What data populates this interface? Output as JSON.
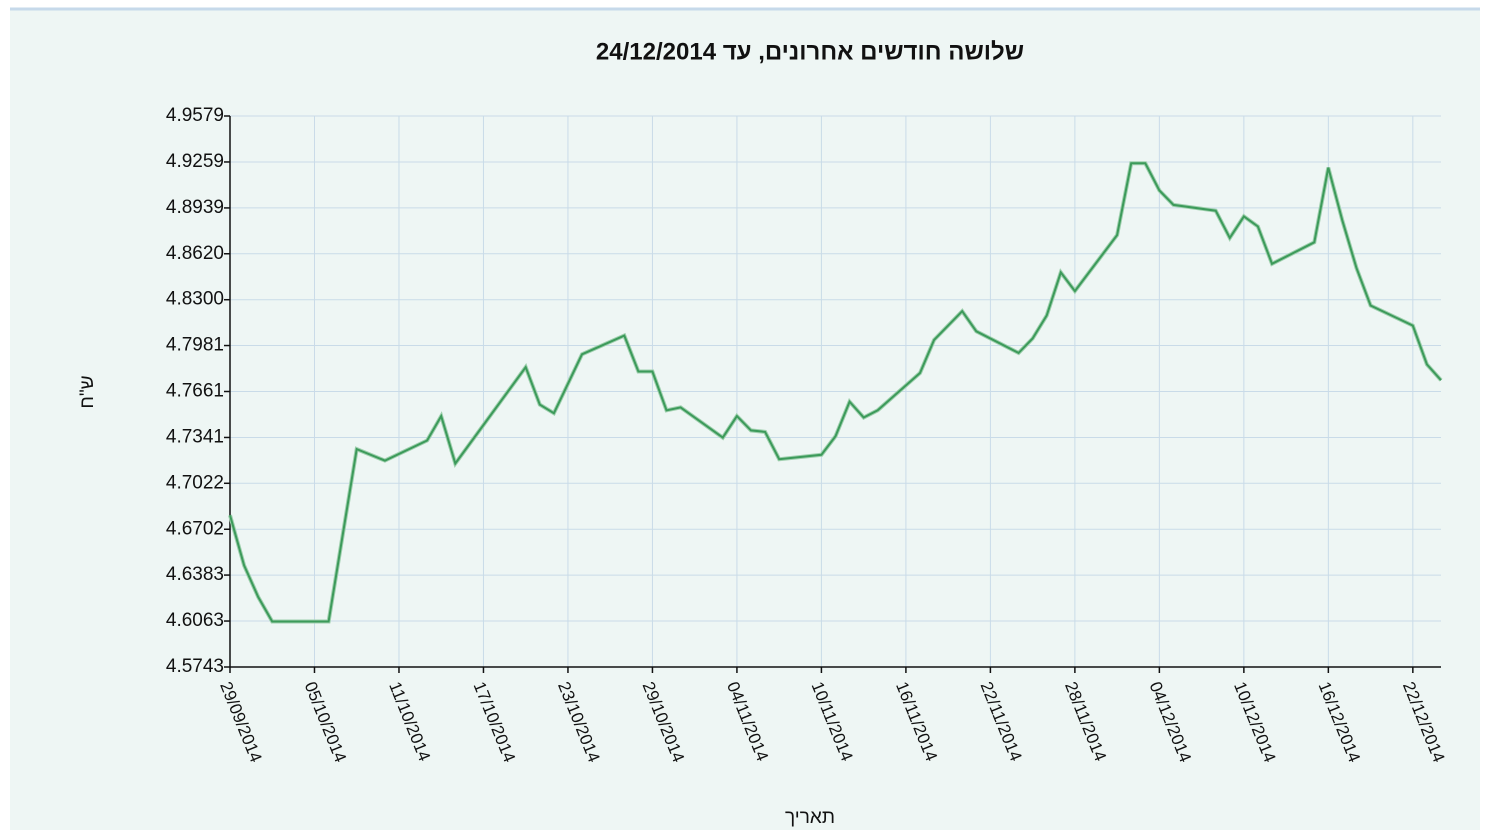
{
  "chart_data": {
    "type": "line",
    "title": "שלושה חודשים אחרונים, עד 24/12/2014",
    "x_label": "תאריך",
    "y_label": "ש\"ח",
    "color": "#3c9a5a",
    "grid": true,
    "x": [
      "2014-09-29",
      "2014-09-30",
      "2014-10-01",
      "2014-10-02",
      "2014-10-06",
      "2014-10-08",
      "2014-10-10",
      "2014-10-13",
      "2014-10-14",
      "2014-10-15",
      "2014-10-20",
      "2014-10-21",
      "2014-10-22",
      "2014-10-24",
      "2014-10-27",
      "2014-10-28",
      "2014-10-29",
      "2014-10-30",
      "2014-10-31",
      "2014-11-03",
      "2014-11-04",
      "2014-11-05",
      "2014-11-06",
      "2014-11-07",
      "2014-11-10",
      "2014-11-11",
      "2014-11-12",
      "2014-11-13",
      "2014-11-14",
      "2014-11-17",
      "2014-11-18",
      "2014-11-20",
      "2014-11-21",
      "2014-11-24",
      "2014-11-25",
      "2014-11-26",
      "2014-11-27",
      "2014-11-28",
      "2014-12-01",
      "2014-12-02",
      "2014-12-03",
      "2014-12-04",
      "2014-12-05",
      "2014-12-08",
      "2014-12-09",
      "2014-12-10",
      "2014-12-11",
      "2014-12-12",
      "2014-12-15",
      "2014-12-16",
      "2014-12-17",
      "2014-12-18",
      "2014-12-19",
      "2014-12-22",
      "2014-12-23",
      "2014-12-24"
    ],
    "values": [
      4.68,
      4.645,
      4.623,
      4.606,
      4.606,
      4.726,
      4.718,
      4.732,
      4.749,
      4.716,
      4.783,
      4.757,
      4.751,
      4.792,
      4.805,
      4.78,
      4.78,
      4.753,
      4.755,
      4.734,
      4.749,
      4.739,
      4.738,
      4.719,
      4.722,
      4.735,
      4.759,
      4.748,
      4.753,
      4.779,
      4.802,
      4.822,
      4.808,
      4.793,
      4.803,
      4.819,
      4.849,
      4.836,
      4.875,
      4.925,
      4.925,
      4.906,
      4.896,
      4.892,
      4.873,
      4.888,
      4.881,
      4.855,
      4.87,
      4.922,
      4.885,
      4.852,
      4.826,
      4.812,
      4.785,
      4.774
    ],
    "xlim": [
      "2014-09-29",
      "2014-12-24"
    ],
    "xticks": [
      {
        "value": "2014-09-29",
        "label": "29/09/2014"
      },
      {
        "value": "2014-10-05",
        "label": "05/10/2014"
      },
      {
        "value": "2014-10-11",
        "label": "11/10/2014"
      },
      {
        "value": "2014-10-17",
        "label": "17/10/2014"
      },
      {
        "value": "2014-10-23",
        "label": "23/10/2014"
      },
      {
        "value": "2014-10-29",
        "label": "29/10/2014"
      },
      {
        "value": "2014-11-04",
        "label": "04/11/2014"
      },
      {
        "value": "2014-11-10",
        "label": "10/11/2014"
      },
      {
        "value": "2014-11-16",
        "label": "16/11/2014"
      },
      {
        "value": "2014-11-22",
        "label": "22/11/2014"
      },
      {
        "value": "2014-11-28",
        "label": "28/11/2014"
      },
      {
        "value": "2014-12-04",
        "label": "04/12/2014"
      },
      {
        "value": "2014-12-10",
        "label": "10/12/2014"
      },
      {
        "value": "2014-12-16",
        "label": "16/12/2014"
      },
      {
        "value": "2014-12-22",
        "label": "22/12/2014"
      }
    ],
    "ylim": [
      4.5743,
      4.9579
    ],
    "yticks": [
      4.5743,
      4.6063,
      4.6383,
      4.6702,
      4.7022,
      4.7341,
      4.7661,
      4.7981,
      {
        "value": 4.83,
        "label": "4.8300"
      },
      {
        "value": 4.862,
        "label": "4.8620"
      },
      4.8939,
      4.9259,
      4.9579
    ]
  }
}
